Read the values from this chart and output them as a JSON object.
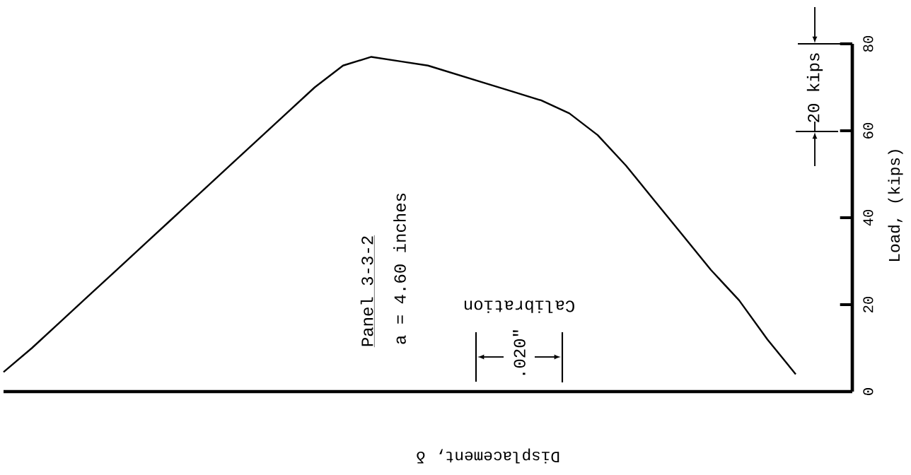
{
  "chart_data": {
    "type": "line",
    "xlabel": "Displacement, δ",
    "ylabel": "Load, (kips)",
    "annotations": [
      "Panel 3-3-2",
      "a = 4.60 inches",
      "Calibration",
      ".020\"",
      "20 kips"
    ],
    "categories": [
      null,
      null,
      null,
      null,
      null,
      null,
      null,
      null,
      null,
      null,
      null,
      null,
      null,
      null,
      null,
      null,
      null,
      null,
      null,
      null,
      null,
      null,
      null,
      null,
      null,
      null,
      null,
      null,
      null,
      null,
      null
    ],
    "values": [
      4.5,
      10,
      16,
      22,
      28,
      34,
      40,
      46,
      52,
      58,
      64,
      70,
      75,
      77,
      76,
      75,
      73,
      71,
      69,
      67,
      64,
      59,
      52,
      44,
      36,
      28,
      21,
      12,
      4,
      null,
      null
    ],
    "color": "#000000",
    "ylim": [
      0,
      80
    ],
    "yticks": [
      0,
      20,
      40,
      60,
      80
    ],
    "tick_labels": "y"
  }
}
